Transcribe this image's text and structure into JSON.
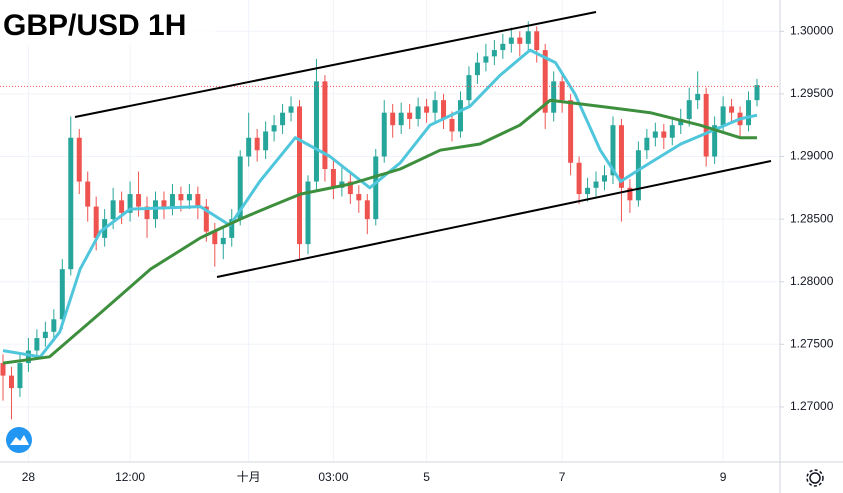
{
  "chart_data": {
    "type": "candlestick",
    "title": "GBP/USD 1H",
    "categories": [
      null,
      null,
      null,
      "28",
      null,
      null,
      null,
      null,
      null,
      null,
      null,
      null,
      null,
      null,
      null,
      "12:00",
      null,
      null,
      null,
      null,
      null,
      null,
      null,
      null,
      null,
      null,
      null,
      null,
      null,
      "十月",
      null,
      null,
      null,
      null,
      null,
      null,
      null,
      null,
      null,
      "03:00",
      null,
      null,
      null,
      null,
      null,
      null,
      null,
      null,
      null,
      null,
      "5",
      null,
      null,
      null,
      null,
      null,
      null,
      null,
      null,
      null,
      null,
      null,
      null,
      null,
      null,
      null,
      "7",
      null,
      null,
      null,
      null,
      null,
      null,
      null,
      null,
      null,
      null,
      null,
      null,
      null,
      null,
      null,
      null,
      null,
      null,
      "9",
      null,
      null,
      null,
      null
    ],
    "open": [
      1.2735,
      1.2725,
      1.2715,
      1.2735,
      1.2745,
      1.2755,
      1.276,
      1.277,
      1.281,
      1.2915,
      1.288,
      1.286,
      1.2835,
      1.285,
      1.2865,
      1.2855,
      1.287,
      1.286,
      1.285,
      1.2865,
      1.286,
      1.287,
      1.2865,
      1.287,
      1.286,
      1.284,
      1.283,
      1.2835,
      1.285,
      1.29,
      1.2915,
      1.2905,
      1.292,
      1.2925,
      1.2935,
      1.294,
      1.283,
      1.288,
      1.296,
      1.289,
      1.2875,
      1.288,
      1.287,
      1.2865,
      1.285,
      1.29,
      1.2935,
      1.2925,
      1.2935,
      1.293,
      1.294,
      1.2935,
      1.2945,
      1.293,
      1.292,
      1.2945,
      1.2965,
      1.2975,
      1.298,
      1.2985,
      1.299,
      1.2995,
      1.299,
      1.3,
      1.2985,
      1.2935,
      1.296,
      1.2945,
      1.2895,
      1.287,
      1.2875,
      1.288,
      1.2885,
      1.2925,
      1.2875,
      1.2865,
      1.2905,
      1.2915,
      1.292,
      1.2915,
      1.2925,
      1.293,
      1.2945,
      1.295,
      1.29,
      1.2925,
      1.294,
      1.2935,
      1.2925,
      1.2945
    ],
    "high": [
      1.2742,
      1.2732,
      1.2742,
      1.2755,
      1.2762,
      1.2768,
      1.2778,
      1.2818,
      1.2932,
      1.2922,
      1.2888,
      1.2868,
      1.2858,
      1.2875,
      1.2872,
      1.288,
      1.2888,
      1.2868,
      1.2872,
      1.2872,
      1.2878,
      1.2876,
      1.2878,
      1.2876,
      1.2866,
      1.2847,
      1.2843,
      1.2858,
      1.2905,
      1.2935,
      1.2922,
      1.2928,
      1.2933,
      1.2942,
      1.2948,
      1.2945,
      1.2885,
      1.2978,
      1.2965,
      1.2898,
      1.2892,
      1.2886,
      1.2877,
      1.287,
      1.2906,
      1.2945,
      1.2942,
      1.2943,
      1.2942,
      1.2947,
      1.2946,
      1.2952,
      1.295,
      1.2936,
      1.2952,
      1.2972,
      1.2983,
      1.299,
      1.2993,
      1.2998,
      1.3003,
      1.3,
      1.3008,
      1.3004,
      1.299,
      1.2968,
      1.2966,
      1.295,
      1.29,
      1.2883,
      1.2888,
      1.2893,
      1.2932,
      1.293,
      1.2882,
      1.2912,
      1.2922,
      1.2927,
      1.2926,
      1.2932,
      1.2938,
      1.2955,
      1.2968,
      1.2955,
      1.2932,
      1.2948,
      1.2946,
      1.294,
      1.2952,
      1.2962
    ],
    "low": [
      1.2705,
      1.269,
      1.2708,
      1.2728,
      1.2738,
      1.2748,
      1.2752,
      1.2762,
      1.2805,
      1.287,
      1.2848,
      1.2825,
      1.2828,
      1.2842,
      1.2846,
      1.2848,
      1.2852,
      1.2835,
      1.2843,
      1.285,
      1.2853,
      1.2856,
      1.2858,
      1.285,
      1.2832,
      1.2812,
      1.2818,
      1.2828,
      1.2845,
      1.2892,
      1.2896,
      1.2898,
      1.2912,
      1.2918,
      1.2928,
      1.2818,
      1.2822,
      1.2872,
      1.288,
      1.2866,
      1.2868,
      1.2862,
      1.2855,
      1.2838,
      1.2845,
      1.2895,
      1.2915,
      1.2918,
      1.2922,
      1.2924,
      1.2927,
      1.2928,
      1.2922,
      1.2912,
      1.2915,
      1.294,
      1.2958,
      1.2968,
      1.2973,
      1.2978,
      1.2983,
      1.298,
      1.2984,
      1.2975,
      1.2922,
      1.2928,
      1.2935,
      1.2885,
      1.2862,
      1.2864,
      1.2868,
      1.2873,
      1.2878,
      1.2848,
      1.2855,
      1.286,
      1.2898,
      1.2908,
      1.2906,
      1.2909,
      1.2918,
      1.2924,
      1.2938,
      1.2892,
      1.2894,
      1.2918,
      1.2928,
      1.2915,
      1.292,
      1.294
    ],
    "close": [
      1.2725,
      1.2715,
      1.2735,
      1.2745,
      1.2755,
      1.276,
      1.277,
      1.281,
      1.2915,
      1.288,
      1.286,
      1.2835,
      1.285,
      1.2865,
      1.2855,
      1.287,
      1.286,
      1.285,
      1.2865,
      1.286,
      1.287,
      1.2865,
      1.287,
      1.286,
      1.284,
      1.283,
      1.2835,
      1.285,
      1.29,
      1.2915,
      1.2905,
      1.292,
      1.2925,
      1.2935,
      1.294,
      1.283,
      1.288,
      1.296,
      1.289,
      1.2875,
      1.288,
      1.287,
      1.2865,
      1.285,
      1.29,
      1.2935,
      1.2925,
      1.2935,
      1.293,
      1.294,
      1.2935,
      1.2945,
      1.293,
      1.292,
      1.2945,
      1.2965,
      1.2975,
      1.298,
      1.2985,
      1.299,
      1.2995,
      1.299,
      1.3,
      1.2985,
      1.2935,
      1.296,
      1.2945,
      1.2895,
      1.287,
      1.2875,
      1.288,
      1.2885,
      1.2925,
      1.2875,
      1.2865,
      1.2905,
      1.2915,
      1.292,
      1.2915,
      1.2925,
      1.293,
      1.2945,
      1.295,
      1.29,
      1.2925,
      1.294,
      1.2935,
      1.2925,
      1.2945,
      1.2957
    ],
    "up_color": "#26a69a",
    "down_color": "#ef5350",
    "series": [
      {
        "color": "#4fc6dc",
        "x": [
          0,
          4.4,
          6.7,
          9.1,
          11.5,
          15,
          23.3,
          26.8,
          30.3,
          34.5,
          38.6,
          43.3,
          46.9,
          50.4,
          55.1,
          58.7,
          62.2,
          65.2,
          67.5,
          70.5,
          72.9,
          75.2,
          80,
          83.5,
          87,
          89
        ],
        "values": [
          1.2745,
          1.274,
          1.276,
          1.281,
          1.284,
          1.2858,
          1.286,
          1.2845,
          1.288,
          1.2915,
          1.29,
          1.2875,
          1.2895,
          1.2925,
          1.294,
          1.2965,
          1.2985,
          1.2975,
          1.295,
          1.2905,
          1.288,
          1.289,
          1.291,
          1.292,
          1.293,
          1.2933
        ]
      },
      {
        "color": "#3d8f3d",
        "x": [
          0,
          5.5,
          11.5,
          17.4,
          23.3,
          28,
          31.5,
          35.1,
          41,
          46.9,
          51.6,
          56.3,
          61,
          64.6,
          70.5,
          76.4,
          82.3,
          87,
          89
        ],
        "values": [
          1.2735,
          1.274,
          1.2775,
          1.281,
          1.2835,
          1.285,
          1.286,
          1.287,
          1.2878,
          1.289,
          1.2905,
          1.291,
          1.2925,
          1.2945,
          1.294,
          1.2935,
          1.2925,
          1.2915,
          1.2915
        ]
      }
    ],
    "last_price": 1.2956,
    "ylim": [
      1.2656,
      1.3025
    ],
    "yticks": [
      {
        "value": 1.27,
        "label": "1.27000"
      },
      {
        "value": 1.275,
        "label": "1.27500"
      },
      {
        "value": 1.28,
        "label": "1.28000"
      },
      {
        "value": 1.285,
        "label": "1.28500"
      },
      {
        "value": 1.29,
        "label": "1.29000"
      },
      {
        "value": 1.295,
        "label": "1.29500"
      },
      {
        "value": 1.3,
        "label": "1.30000"
      }
    ],
    "grid": true
  }
}
